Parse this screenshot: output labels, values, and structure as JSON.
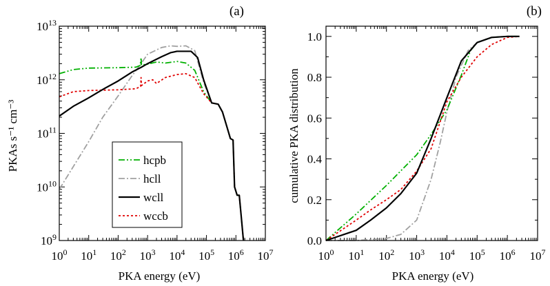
{
  "chart_data": [
    {
      "type": "line",
      "panel_label": "(a)",
      "xlabel": "PKA energy (eV)",
      "ylabel": "PKAs s⁻¹ cm⁻³",
      "x_scale": "log",
      "y_scale": "log",
      "xlim": [
        1,
        10000000
      ],
      "ylim": [
        1000000000,
        10000000000000
      ],
      "x_tick_labels": [
        {
          "b": "10",
          "e": "0",
          "v": 1
        },
        {
          "b": "10",
          "e": "1",
          "v": 10
        },
        {
          "b": "10",
          "e": "2",
          "v": 100
        },
        {
          "b": "10",
          "e": "3",
          "v": 1000
        },
        {
          "b": "10",
          "e": "4",
          "v": 10000
        },
        {
          "b": "10",
          "e": "5",
          "v": 100000
        },
        {
          "b": "10",
          "e": "6",
          "v": 1000000
        },
        {
          "b": "10",
          "e": "7",
          "v": 10000000
        }
      ],
      "y_tick_labels": [
        {
          "b": "10",
          "e": "9",
          "v": 1000000000
        },
        {
          "b": "10",
          "e": "10",
          "v": 10000000000
        },
        {
          "b": "10",
          "e": "11",
          "v": 100000000000
        },
        {
          "b": "10",
          "e": "12",
          "v": 1000000000000
        },
        {
          "b": "10",
          "e": "13",
          "v": 10000000000000
        }
      ],
      "legend_position": "center-left",
      "series": [
        {
          "name": "hcpb",
          "color": "#00b000",
          "dash": "dash-dot-dot",
          "points": [
            [
              1,
              1300000000000.0
            ],
            [
              3,
              1550000000000.0
            ],
            [
              10,
              1650000000000.0
            ],
            [
              100,
              1680000000000.0
            ],
            [
              400,
              1720000000000.0
            ],
            [
              560,
              1850000000000.0
            ],
            [
              600,
              2600000000000.0
            ],
            [
              620,
              1900000000000.0
            ],
            [
              1000,
              1950000000000.0
            ],
            [
              2000,
              2150000000000.0
            ],
            [
              4000,
              2050000000000.0
            ],
            [
              10000,
              2200000000000.0
            ],
            [
              20000,
              2050000000000.0
            ],
            [
              40000,
              1500000000000.0
            ],
            [
              80000,
              600000000000.0
            ],
            [
              150000,
              370000000000.0
            ],
            [
              250000,
              350000000000.0
            ],
            [
              350000,
              250000000000.0
            ],
            [
              500000,
              130000000000.0
            ],
            [
              650000,
              80000000000.0
            ],
            [
              800000,
              75000000000.0
            ],
            [
              900000,
              10000000000.0
            ],
            [
              1100000,
              7000000000.0
            ],
            [
              1300000,
              7000000000.0
            ],
            [
              1500000,
              3000000000.0
            ],
            [
              1800000,
              1000000000.0
            ]
          ]
        },
        {
          "name": "hcll",
          "color": "#a0a0a0",
          "dash": "dash-dot",
          "points": [
            [
              1,
              9000000000.0
            ],
            [
              3,
              24000000000.0
            ],
            [
              10,
              70000000000.0
            ],
            [
              30,
              200000000000.0
            ],
            [
              100,
              500000000000.0
            ],
            [
              300,
              1200000000000.0
            ],
            [
              600,
              2000000000000.0
            ],
            [
              1000,
              3000000000000.0
            ],
            [
              3000,
              4000000000000.0
            ],
            [
              6000,
              4300000000000.0
            ],
            [
              10000,
              4200000000000.0
            ],
            [
              20000,
              4300000000000.0
            ],
            [
              40000,
              3500000000000.0
            ],
            [
              80000,
              900000000000.0
            ],
            [
              150000,
              370000000000.0
            ],
            [
              250000,
              350000000000.0
            ],
            [
              350000,
              250000000000.0
            ],
            [
              500000,
              130000000000.0
            ],
            [
              650000,
              80000000000.0
            ],
            [
              800000,
              75000000000.0
            ],
            [
              900000,
              10000000000.0
            ],
            [
              1100000,
              7000000000.0
            ],
            [
              1300000,
              7000000000.0
            ],
            [
              1500000,
              3000000000.0
            ],
            [
              1800000,
              1000000000.0
            ]
          ]
        },
        {
          "name": "wcll",
          "color": "#000000",
          "dash": "solid",
          "points": [
            [
              1,
              210000000000.0
            ],
            [
              3,
              320000000000.0
            ],
            [
              10,
              460000000000.0
            ],
            [
              30,
              660000000000.0
            ],
            [
              100,
              950000000000.0
            ],
            [
              300,
              1400000000000.0
            ],
            [
              600,
              1700000000000.0
            ],
            [
              1000,
              2000000000000.0
            ],
            [
              3000,
              2700000000000.0
            ],
            [
              6000,
              3200000000000.0
            ],
            [
              10000,
              3400000000000.0
            ],
            [
              30000,
              3400000000000.0
            ],
            [
              50000,
              2600000000000.0
            ],
            [
              80000,
              1000000000000.0
            ],
            [
              150000,
              370000000000.0
            ],
            [
              250000,
              350000000000.0
            ],
            [
              350000,
              250000000000.0
            ],
            [
              500000,
              130000000000.0
            ],
            [
              650000,
              80000000000.0
            ],
            [
              800000,
              75000000000.0
            ],
            [
              900000,
              10000000000.0
            ],
            [
              1100000,
              7000000000.0
            ],
            [
              1300000,
              7000000000.0
            ],
            [
              1500000,
              3000000000.0
            ],
            [
              1800000,
              1000000000.0
            ]
          ]
        },
        {
          "name": "wccb",
          "color": "#e00000",
          "dash": "dotted",
          "points": [
            [
              1,
              480000000000.0
            ],
            [
              3,
              600000000000.0
            ],
            [
              10,
              630000000000.0
            ],
            [
              100,
              650000000000.0
            ],
            [
              400,
              680000000000.0
            ],
            [
              580,
              750000000000.0
            ],
            [
              600,
              1100000000000.0
            ],
            [
              620,
              780000000000.0
            ],
            [
              1000,
              950000000000.0
            ],
            [
              1500,
              1000000000000.0
            ],
            [
              2000,
              850000000000.0
            ],
            [
              4000,
              1100000000000.0
            ],
            [
              10000,
              1250000000000.0
            ],
            [
              20000,
              1300000000000.0
            ],
            [
              40000,
              1100000000000.0
            ],
            [
              80000,
              550000000000.0
            ],
            [
              150000,
              370000000000.0
            ],
            [
              250000,
              350000000000.0
            ],
            [
              350000,
              250000000000.0
            ],
            [
              500000,
              130000000000.0
            ],
            [
              650000,
              80000000000.0
            ],
            [
              800000,
              75000000000.0
            ],
            [
              900000,
              10000000000.0
            ],
            [
              1100000,
              7000000000.0
            ],
            [
              1300000,
              7000000000.0
            ],
            [
              1500000,
              3000000000.0
            ],
            [
              1800000,
              1000000000.0
            ]
          ]
        }
      ]
    },
    {
      "type": "line",
      "panel_label": "(b)",
      "xlabel": "PKA energy (eV)",
      "ylabel": "cumulative PKA distribution",
      "x_scale": "log",
      "y_scale": "linear",
      "xlim": [
        1,
        10000000
      ],
      "ylim": [
        0,
        1.05
      ],
      "x_tick_labels": [
        {
          "b": "10",
          "e": "0",
          "v": 1
        },
        {
          "b": "10",
          "e": "1",
          "v": 10
        },
        {
          "b": "10",
          "e": "2",
          "v": 100
        },
        {
          "b": "10",
          "e": "3",
          "v": 1000
        },
        {
          "b": "10",
          "e": "4",
          "v": 10000
        },
        {
          "b": "10",
          "e": "5",
          "v": 100000
        },
        {
          "b": "10",
          "e": "6",
          "v": 1000000
        },
        {
          "b": "10",
          "e": "7",
          "v": 10000000
        }
      ],
      "y_tick_labels": [
        {
          "t": "0.0",
          "v": 0
        },
        {
          "t": "0.2",
          "v": 0.2
        },
        {
          "t": "0.4",
          "v": 0.4
        },
        {
          "t": "0.6",
          "v": 0.6
        },
        {
          "t": "0.8",
          "v": 0.8
        },
        {
          "t": "1.0",
          "v": 1.0
        }
      ],
      "series": [
        {
          "name": "hcpb",
          "color": "#00b000",
          "dash": "dash-dot-dot",
          "points": [
            [
              1,
              0
            ],
            [
              10,
              0.13
            ],
            [
              100,
              0.27
            ],
            [
              1000,
              0.42
            ],
            [
              3000,
              0.52
            ],
            [
              10000,
              0.64
            ],
            [
              30000,
              0.81
            ],
            [
              60000,
              0.93
            ],
            [
              100000,
              0.97
            ],
            [
              300000,
              0.995
            ],
            [
              1000000,
              1.0
            ],
            [
              2500000,
              1.0
            ]
          ]
        },
        {
          "name": "hcll",
          "color": "#a0a0a0",
          "dash": "dash-dot",
          "points": [
            [
              1,
              0
            ],
            [
              10,
              0.0
            ],
            [
              100,
              0.01
            ],
            [
              300,
              0.03
            ],
            [
              1000,
              0.1
            ],
            [
              3000,
              0.3
            ],
            [
              6000,
              0.48
            ],
            [
              10000,
              0.63
            ],
            [
              20000,
              0.8
            ],
            [
              50000,
              0.93
            ],
            [
              100000,
              0.97
            ],
            [
              300000,
              0.995
            ],
            [
              1000000,
              1.0
            ],
            [
              2500000,
              1.0
            ]
          ]
        },
        {
          "name": "wcll",
          "color": "#000000",
          "dash": "solid",
          "points": [
            [
              1,
              0
            ],
            [
              10,
              0.05
            ],
            [
              30,
              0.1
            ],
            [
              100,
              0.16
            ],
            [
              300,
              0.23
            ],
            [
              1000,
              0.33
            ],
            [
              3000,
              0.5
            ],
            [
              10000,
              0.7
            ],
            [
              30000,
              0.88
            ],
            [
              100000,
              0.97
            ],
            [
              300000,
              0.995
            ],
            [
              1000000,
              1.0
            ],
            [
              2500000,
              1.0
            ]
          ]
        },
        {
          "name": "wccb",
          "color": "#e00000",
          "dash": "dotted",
          "points": [
            [
              1,
              0
            ],
            [
              10,
              0.1
            ],
            [
              30,
              0.15
            ],
            [
              100,
              0.2
            ],
            [
              300,
              0.25
            ],
            [
              1000,
              0.34
            ],
            [
              3000,
              0.45
            ],
            [
              10000,
              0.68
            ],
            [
              30000,
              0.8
            ],
            [
              100000,
              0.9
            ],
            [
              300000,
              0.96
            ],
            [
              1000000,
              0.995
            ],
            [
              2500000,
              1.0
            ]
          ]
        }
      ]
    }
  ]
}
